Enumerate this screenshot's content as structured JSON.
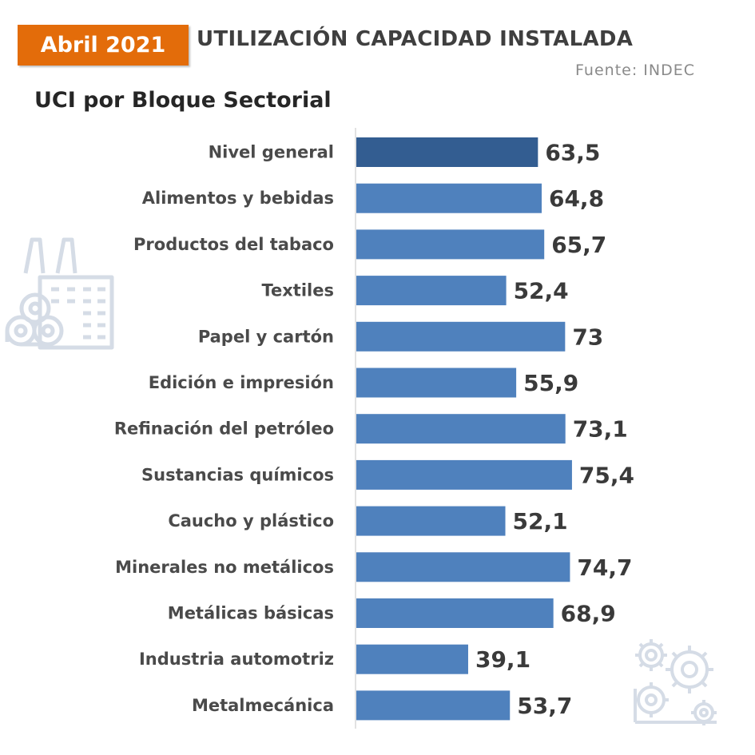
{
  "header": {
    "badge": "Abril 2021",
    "title": "UTILIZACIÓN CAPACIDAD INSTALADA",
    "source": "Fuente: INDEC",
    "subtitle": "UCI por Bloque Sectorial"
  },
  "colors": {
    "badge_bg": "#e36c0a",
    "highlight_bar": "#335d91",
    "bar": "#4f81bd",
    "axis": "#d9d9d9",
    "icon": "#d5dce6"
  },
  "icons": {
    "left": "factory-icon",
    "right": "gears-icon"
  },
  "chart_data": {
    "type": "bar",
    "orientation": "horizontal",
    "categories": [
      "Nivel general",
      "Alimentos y bebidas",
      "Productos del tabaco",
      "Textiles",
      "Papel y cartón",
      "Edición e impresión",
      "Refinación del petróleo",
      "Sustancias químicos",
      "Caucho y plástico",
      "Minerales no metálicos",
      "Metálicas básicas",
      "Industria automotriz",
      "Metalmecánica"
    ],
    "values": [
      63.5,
      64.8,
      65.7,
      52.4,
      73,
      55.9,
      73.1,
      75.4,
      52.1,
      74.7,
      68.9,
      39.1,
      53.7
    ],
    "value_labels": [
      "63,5",
      "64,8",
      "65,7",
      "52,4",
      "73",
      "55,9",
      "73,1",
      "75,4",
      "52,1",
      "74,7",
      "68,9",
      "39,1",
      "53,7"
    ],
    "highlight_index": 0,
    "xlim": [
      0,
      100
    ],
    "grid": false,
    "legend": "none"
  }
}
